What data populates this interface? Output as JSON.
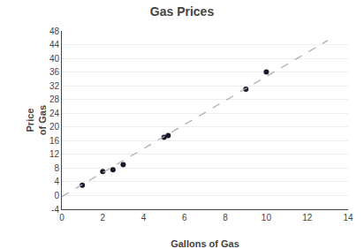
{
  "chart_data": {
    "type": "scatter",
    "title": "Gas Prices",
    "x_label": "Gallons of Gas",
    "y_label": "Price\nof Gas",
    "series": [
      {
        "type": "scatter",
        "marker": "circle",
        "color": "#1a1a2e",
        "x": [
          1,
          2,
          2.5,
          3,
          5,
          5.2,
          9,
          10
        ],
        "values": [
          3,
          7,
          7.5,
          9,
          17,
          17.5,
          31,
          36
        ]
      },
      {
        "type": "line",
        "line_style": "dashed",
        "color": "#aaaaaa",
        "x": [
          0,
          13
        ],
        "values": [
          -0.3,
          45.2
        ]
      }
    ],
    "xlim": [
      0,
      14
    ],
    "xticks": [
      0,
      2,
      4,
      6,
      8,
      10,
      12,
      14
    ],
    "ylim": [
      -4,
      48
    ],
    "yticks": [
      -4,
      0,
      4,
      8,
      12,
      16,
      20,
      24,
      28,
      32,
      36,
      40,
      44,
      48
    ],
    "grid": "y"
  }
}
